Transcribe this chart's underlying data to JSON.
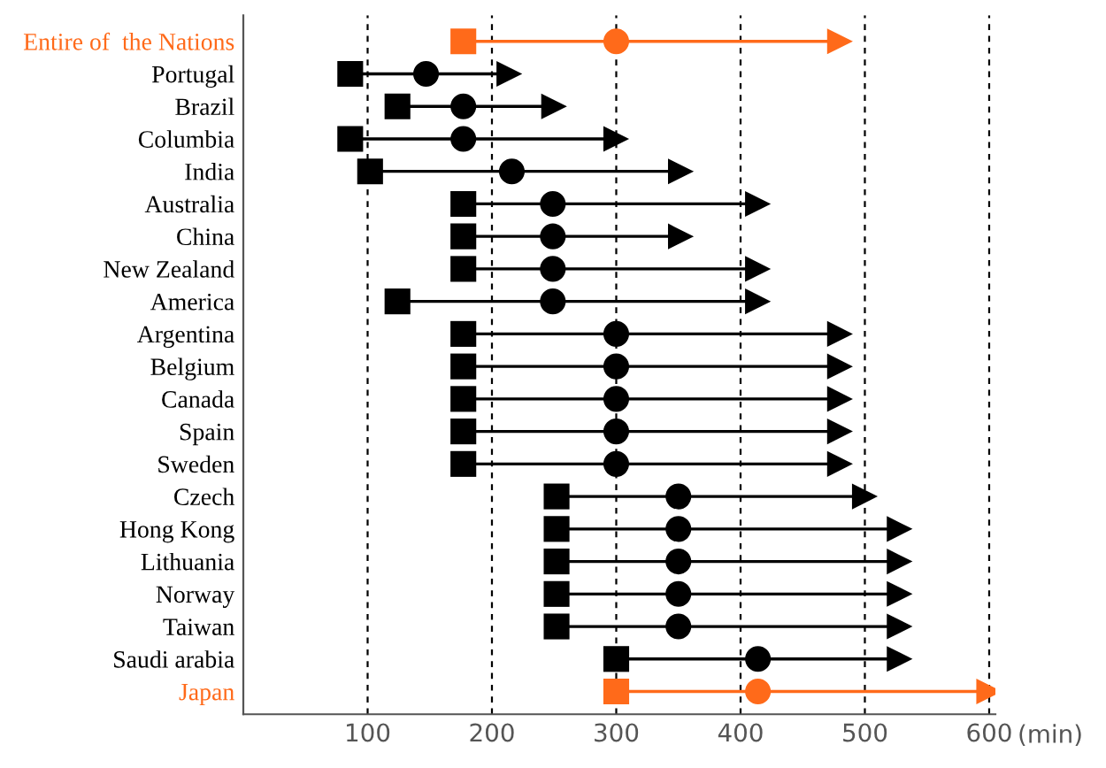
{
  "chart_data": {
    "type": "scatter",
    "orientation": "horizontal",
    "categories": [
      "Entire of  the Nations",
      "Portugal",
      "Brazil",
      "Columbia",
      "India",
      "Australia",
      "China",
      "New Zealand",
      "America",
      "Argentina",
      "Belgium",
      "Canada",
      "Spain",
      "Sweden",
      "Czech",
      "Hong Kong",
      "Lithuania",
      "Norway",
      "Taiwan",
      "Saudi arabia",
      "Japan"
    ],
    "series": [
      {
        "marker": "square",
        "colors": [
          "#ff6a1a",
          "#000000",
          "#000000",
          "#000000",
          "#000000",
          "#000000",
          "#000000",
          "#000000",
          "#000000",
          "#000000",
          "#000000",
          "#000000",
          "#000000",
          "#000000",
          "#000000",
          "#000000",
          "#000000",
          "#000000",
          "#000000",
          "#000000",
          "#ff6a1a"
        ],
        "values": [
          177,
          86,
          124,
          86,
          102,
          177,
          177,
          177,
          124,
          177,
          177,
          177,
          177,
          177,
          252,
          252,
          252,
          252,
          252,
          300,
          300
        ]
      },
      {
        "marker": "circle",
        "colors": [
          "#ff6a1a",
          "#000000",
          "#000000",
          "#000000",
          "#000000",
          "#000000",
          "#000000",
          "#000000",
          "#000000",
          "#000000",
          "#000000",
          "#000000",
          "#000000",
          "#000000",
          "#000000",
          "#000000",
          "#000000",
          "#000000",
          "#000000",
          "#000000",
          "#ff6a1a"
        ],
        "values": [
          300,
          147,
          177,
          177,
          216,
          249,
          249,
          249,
          249,
          300,
          300,
          300,
          300,
          300,
          350,
          350,
          350,
          350,
          350,
          414,
          414
        ]
      },
      {
        "marker": "triangle",
        "colors": [
          "#ff6a1a",
          "#000000",
          "#000000",
          "#000000",
          "#000000",
          "#000000",
          "#000000",
          "#000000",
          "#000000",
          "#000000",
          "#000000",
          "#000000",
          "#000000",
          "#000000",
          "#000000",
          "#000000",
          "#000000",
          "#000000",
          "#000000",
          "#000000",
          "#ff6a1a"
        ],
        "values": [
          480,
          214,
          250,
          300,
          352,
          414,
          352,
          414,
          414,
          480,
          480,
          480,
          480,
          480,
          500,
          528,
          528,
          528,
          528,
          528,
          600
        ]
      }
    ],
    "xlabel": "(min)",
    "xlim": [
      0,
      605
    ],
    "xticks": [
      100,
      200,
      300,
      400,
      500,
      600
    ],
    "grid": "x",
    "legend": false
  }
}
